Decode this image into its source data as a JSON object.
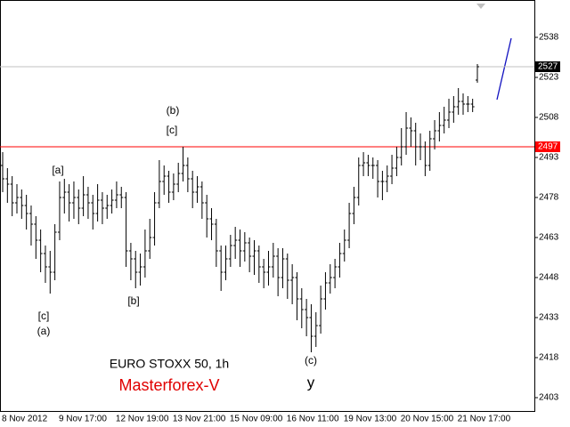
{
  "chart_data": {
    "type": "ohlc",
    "title": "EURO STOXX 50, 1h",
    "subtitle": "Masterforex-V",
    "annotations": [
      "(b)",
      "[c]",
      "[a]",
      "[c]",
      "(a)",
      "[b]",
      "(c)",
      "y"
    ],
    "color": "#000000",
    "ylim": [
      2398,
      2552
    ],
    "yticks": [
      2538,
      2523,
      2508,
      2493,
      2478,
      2463,
      2448,
      2433,
      2418,
      2403
    ],
    "price_lines": [
      {
        "value": 2527,
        "color": "#c0c0c0",
        "box": "#000000"
      },
      {
        "value": 2497,
        "color": "#ff0000",
        "box": "#ff0000"
      }
    ],
    "categories": [
      "8 Nov 2012",
      null,
      null,
      null,
      null,
      null,
      null,
      null,
      null,
      null,
      null,
      null,
      "9 Nov 17:00",
      null,
      null,
      null,
      null,
      null,
      null,
      null,
      null,
      null,
      null,
      null,
      "12 Nov 19:00",
      null,
      null,
      null,
      null,
      null,
      null,
      null,
      null,
      null,
      null,
      null,
      "13 Nov 21:00",
      null,
      null,
      null,
      null,
      null,
      null,
      null,
      null,
      null,
      null,
      null,
      "15 Nov 09:00",
      null,
      null,
      null,
      null,
      null,
      null,
      null,
      null,
      null,
      null,
      null,
      "16 Nov 11:00",
      null,
      null,
      null,
      null,
      null,
      null,
      null,
      null,
      null,
      null,
      null,
      "19 Nov 13:00",
      null,
      null,
      null,
      null,
      null,
      null,
      null,
      null,
      null,
      null,
      null,
      "20 Nov 15:00",
      null,
      null,
      null,
      null,
      null,
      null,
      null,
      null,
      null,
      null,
      null,
      "21 Nov 17:00",
      null,
      null,
      null,
      null
    ],
    "open": [
      2490,
      2485,
      2483,
      2476,
      2478,
      2475,
      2472,
      2468,
      2462,
      2457,
      2452,
      2450,
      2465,
      2478,
      2480,
      2476,
      2478,
      2474,
      2479,
      2476,
      2472,
      2477,
      2474,
      2475,
      2477,
      2479,
      2478,
      2458,
      2455,
      2450,
      2452,
      2458,
      2463,
      2476,
      2484,
      2486,
      2480,
      2483,
      2487,
      2490,
      2485,
      2480,
      2482,
      2476,
      2470,
      2468,
      2458,
      2450,
      2455,
      2460,
      2462,
      2458,
      2461,
      2456,
      2458,
      2452,
      2450,
      2452,
      2456,
      2448,
      2455,
      2447,
      2448,
      2440,
      2436,
      2433,
      2426,
      2430,
      2440,
      2446,
      2448,
      2452,
      2457,
      2462,
      2472,
      2478,
      2490,
      2491,
      2490,
      2490,
      2484,
      2484,
      2486,
      2489,
      2493,
      2497,
      2504,
      2503,
      2497,
      2497,
      2490,
      2500,
      2503,
      2505,
      2507,
      2510,
      2512,
      2514,
      2513,
      2513,
      2522
    ],
    "high": [
      2495,
      2489,
      2486,
      2483,
      2481,
      2479,
      2475,
      2471,
      2466,
      2460,
      2458,
      2468,
      2484,
      2485,
      2483,
      2484,
      2481,
      2486,
      2482,
      2479,
      2483,
      2480,
      2479,
      2481,
      2484,
      2482,
      2480,
      2461,
      2458,
      2457,
      2466,
      2470,
      2480,
      2492,
      2490,
      2488,
      2487,
      2491,
      2497,
      2493,
      2488,
      2486,
      2484,
      2479,
      2474,
      2470,
      2460,
      2460,
      2464,
      2467,
      2466,
      2465,
      2463,
      2462,
      2460,
      2455,
      2458,
      2461,
      2459,
      2459,
      2457,
      2453,
      2450,
      2444,
      2440,
      2438,
      2435,
      2445,
      2450,
      2453,
      2455,
      2461,
      2466,
      2476,
      2482,
      2493,
      2495,
      2494,
      2493,
      2492,
      2488,
      2490,
      2494,
      2497,
      2504,
      2510,
      2508,
      2506,
      2502,
      2499,
      2503,
      2507,
      2510,
      2512,
      2515,
      2516,
      2519,
      2517,
      2516,
      2515,
      2528
    ],
    "low": [
      2480,
      2476,
      2471,
      2472,
      2470,
      2466,
      2460,
      2455,
      2450,
      2446,
      2442,
      2447,
      2462,
      2472,
      2469,
      2470,
      2468,
      2471,
      2470,
      2466,
      2469,
      2468,
      2470,
      2472,
      2474,
      2474,
      2452,
      2447,
      2444,
      2445,
      2448,
      2455,
      2460,
      2474,
      2479,
      2476,
      2477,
      2480,
      2484,
      2480,
      2474,
      2476,
      2470,
      2463,
      2462,
      2452,
      2443,
      2447,
      2452,
      2455,
      2452,
      2454,
      2450,
      2449,
      2446,
      2444,
      2445,
      2448,
      2441,
      2444,
      2440,
      2438,
      2432,
      2429,
      2426,
      2420,
      2422,
      2427,
      2436,
      2442,
      2444,
      2448,
      2454,
      2459,
      2468,
      2475,
      2486,
      2486,
      2485,
      2478,
      2477,
      2480,
      2483,
      2486,
      2490,
      2494,
      2497,
      2490,
      2492,
      2486,
      2488,
      2496,
      2499,
      2502,
      2504,
      2506,
      2509,
      2509,
      2510,
      2510,
      2521
    ],
    "close": [
      2485,
      2483,
      2476,
      2478,
      2475,
      2472,
      2468,
      2462,
      2457,
      2452,
      2450,
      2465,
      2478,
      2480,
      2476,
      2478,
      2474,
      2479,
      2476,
      2472,
      2477,
      2474,
      2475,
      2477,
      2479,
      2478,
      2458,
      2455,
      2450,
      2452,
      2458,
      2463,
      2476,
      2484,
      2486,
      2480,
      2483,
      2487,
      2490,
      2485,
      2480,
      2482,
      2476,
      2470,
      2468,
      2458,
      2450,
      2455,
      2460,
      2462,
      2458,
      2461,
      2456,
      2458,
      2452,
      2450,
      2452,
      2456,
      2448,
      2455,
      2447,
      2448,
      2440,
      2436,
      2433,
      2426,
      2430,
      2440,
      2446,
      2448,
      2452,
      2457,
      2462,
      2472,
      2478,
      2490,
      2491,
      2490,
      2490,
      2484,
      2484,
      2486,
      2489,
      2493,
      2497,
      2504,
      2503,
      2497,
      2497,
      2490,
      2500,
      2503,
      2505,
      2507,
      2510,
      2512,
      2514,
      2513,
      2513,
      2512,
      2527
    ]
  }
}
